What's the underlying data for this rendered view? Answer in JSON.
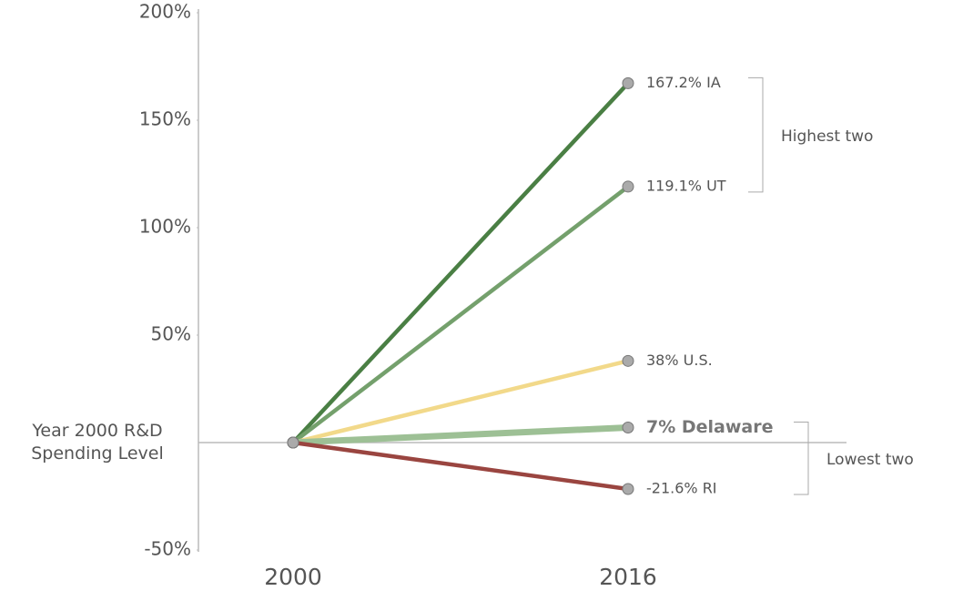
{
  "chart_data": {
    "type": "slope",
    "categories": [
      "2000",
      "2016"
    ],
    "ylim": [
      -50,
      200
    ],
    "yticks": [
      {
        "value": -50,
        "label": "-50%"
      },
      {
        "value": 0,
        "label": "Year 2000 R&D Spending Level"
      },
      {
        "value": 50,
        "label": "50%"
      },
      {
        "value": 100,
        "label": "100%"
      },
      {
        "value": 150,
        "label": "150%"
      },
      {
        "value": 200,
        "label": "200%"
      }
    ],
    "series": [
      {
        "name": "IA",
        "color": "#4a7f44",
        "values": [
          0,
          167.2
        ],
        "label": "167.2% IA"
      },
      {
        "name": "UT",
        "color": "#74a06c",
        "values": [
          0,
          119.1
        ],
        "label": "119.1% UT"
      },
      {
        "name": "U.S.",
        "color": "#f2d98a",
        "values": [
          0,
          38
        ],
        "label": "38% U.S."
      },
      {
        "name": "Delaware",
        "color": "#9dc095",
        "values": [
          0,
          7
        ],
        "label": "7% Delaware",
        "bold": true
      },
      {
        "name": "RI",
        "color": "#9a4540",
        "values": [
          0,
          -21.6
        ],
        "label": "-21.6% RI"
      }
    ],
    "annotations": [
      {
        "text": "Highest two",
        "series": [
          0,
          1
        ]
      },
      {
        "text": "Lowest two",
        "series": [
          3,
          4
        ]
      }
    ]
  }
}
